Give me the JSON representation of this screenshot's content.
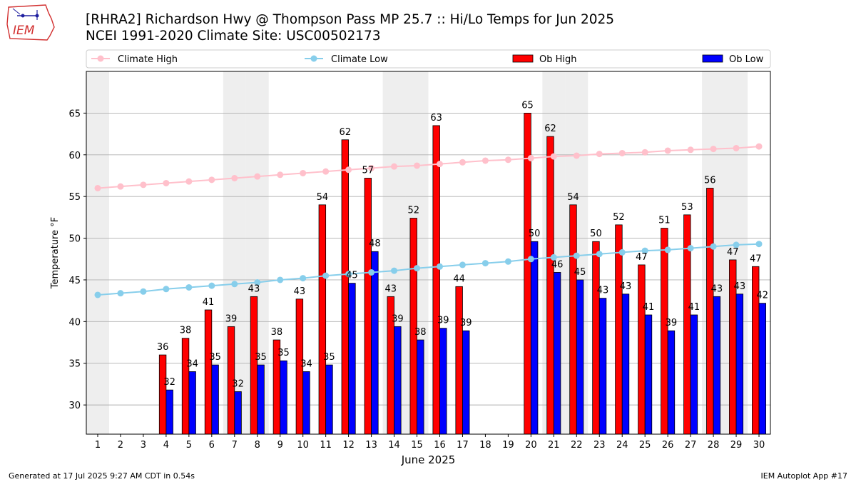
{
  "header": {
    "title_line1": "[RHRA2] Richardson Hwy @ Thompson Pass MP 25.7 :: Hi/Lo Temps for Jun 2025",
    "title_line2": "NCEI 1991-2020 Climate Site: USC00502173",
    "logo_text": "IEM"
  },
  "footer": {
    "generated": "Generated at 17 Jul 2025 9:27 AM CDT in 0.54s",
    "app": "IEM Autoplot App #17"
  },
  "colors": {
    "ob_high": "#ff0000",
    "ob_low": "#0000ff",
    "climate_high": "#ffc0cb",
    "climate_low": "#87ceeb",
    "weekend_band": "#eeeeee",
    "grid": "#b0b0b0"
  },
  "chart_data": {
    "type": "bar",
    "xlabel": "June 2025",
    "ylabel": "Temperature °F",
    "ylim": [
      26.5,
      70
    ],
    "yticks": [
      30,
      35,
      40,
      45,
      50,
      55,
      60,
      65
    ],
    "grid": "horizontal",
    "legend_placement": "top",
    "shaded_weekend_days": [
      1,
      7,
      8,
      14,
      15,
      21,
      22,
      28,
      29
    ],
    "x": [
      1,
      2,
      3,
      4,
      5,
      6,
      7,
      8,
      9,
      10,
      11,
      12,
      13,
      14,
      15,
      16,
      17,
      18,
      19,
      20,
      21,
      22,
      23,
      24,
      25,
      26,
      27,
      28,
      29,
      30
    ],
    "series": [
      {
        "name": "Climate High",
        "kind": "line",
        "values": [
          56.0,
          56.2,
          56.4,
          56.6,
          56.8,
          57.0,
          57.2,
          57.4,
          57.6,
          57.8,
          58.0,
          58.2,
          58.4,
          58.6,
          58.7,
          58.9,
          59.1,
          59.3,
          59.4,
          59.6,
          59.8,
          59.9,
          60.1,
          60.2,
          60.3,
          60.5,
          60.6,
          60.7,
          60.8,
          61.0
        ]
      },
      {
        "name": "Climate Low",
        "kind": "line",
        "values": [
          43.2,
          43.4,
          43.6,
          43.9,
          44.1,
          44.3,
          44.5,
          44.7,
          45.0,
          45.2,
          45.5,
          45.7,
          45.9,
          46.1,
          46.4,
          46.6,
          46.8,
          47.0,
          47.2,
          47.5,
          47.7,
          47.9,
          48.1,
          48.3,
          48.5,
          48.6,
          48.8,
          49.0,
          49.2,
          49.3
        ]
      },
      {
        "name": "Ob High",
        "kind": "bar",
        "values": [
          null,
          null,
          null,
          36,
          38,
          41.4,
          39.4,
          43,
          37.8,
          42.7,
          54,
          61.8,
          57.2,
          43,
          52.4,
          63.5,
          44.2,
          null,
          null,
          65,
          62.2,
          54,
          49.6,
          51.6,
          46.8,
          51.2,
          52.8,
          56,
          47.4,
          46.6
        ],
        "labels": [
          "",
          "",
          "",
          "36",
          "38",
          "41",
          "39",
          "43",
          "38",
          "43",
          "54",
          "62",
          "57",
          "43",
          "52",
          "63",
          "44",
          "",
          "",
          "65",
          "62",
          "54",
          "50",
          "52",
          "47",
          "51",
          "53",
          "56",
          "47",
          "47"
        ]
      },
      {
        "name": "Ob Low",
        "kind": "bar",
        "values": [
          null,
          null,
          null,
          31.8,
          34,
          34.8,
          31.6,
          34.8,
          35.3,
          34,
          34.8,
          44.6,
          48.4,
          39.4,
          37.8,
          39.2,
          38.9,
          null,
          null,
          49.6,
          45.9,
          45,
          42.8,
          43.3,
          40.8,
          38.9,
          40.8,
          43,
          43.3,
          42.2
        ],
        "labels": [
          "",
          "",
          "",
          "32",
          "34",
          "35",
          "32",
          "35",
          "35",
          "34",
          "35",
          "45",
          "48",
          "39",
          "38",
          "39",
          "39",
          "",
          "",
          "50",
          "46",
          "45",
          "43",
          "43",
          "41",
          "39",
          "41",
          "43",
          "43",
          "42"
        ]
      }
    ]
  }
}
